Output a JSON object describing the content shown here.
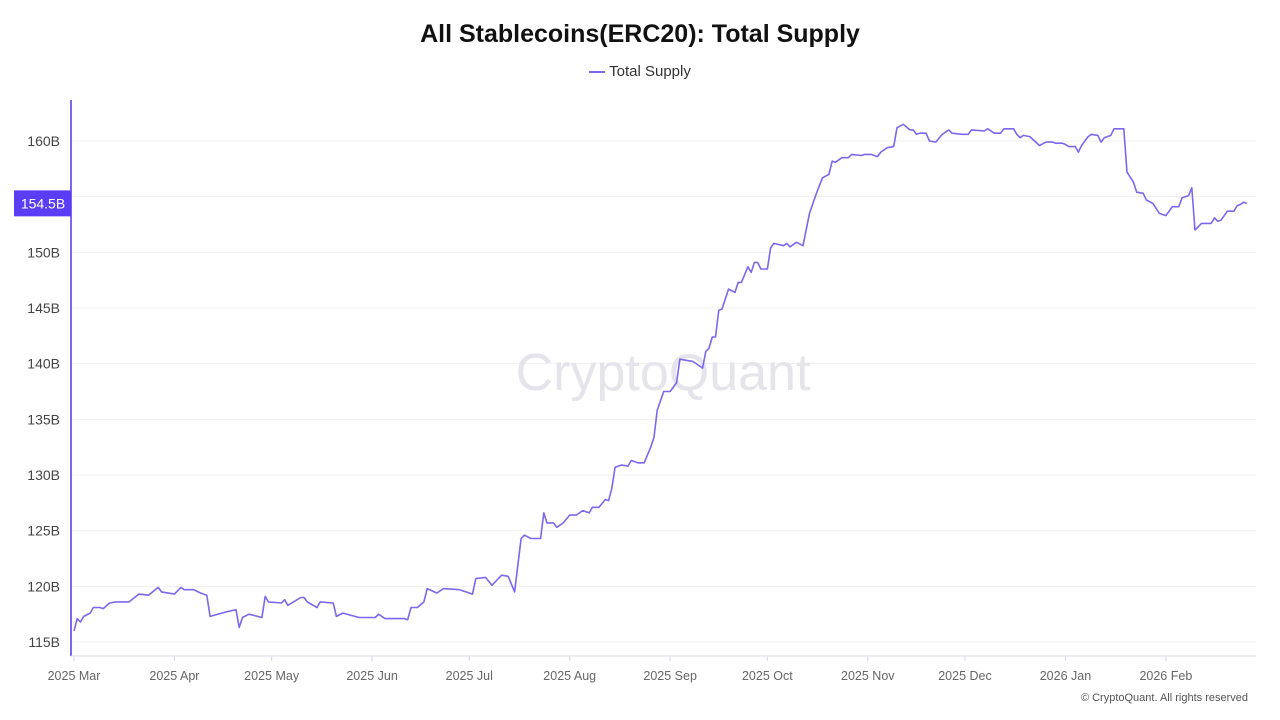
{
  "chart_data": {
    "type": "line",
    "title": "All Stablecoins(ERC20): Total Supply",
    "legend": {
      "position": "top-center",
      "entries": [
        "Total Supply"
      ]
    },
    "xlabel": "",
    "ylabel": "",
    "x_tick_labels": [
      "2025 Mar",
      "2025 Apr",
      "2025 May",
      "2025 Jun",
      "2025 Jul",
      "2025 Aug",
      "2025 Sep",
      "2025 Oct",
      "2025 Nov",
      "2025 Dec",
      "2026 Jan",
      "2026 Feb"
    ],
    "x_tick_dates": [
      "2025-03-01",
      "2025-04-01",
      "2025-05-01",
      "2025-06-01",
      "2025-07-01",
      "2025-08-01",
      "2025-09-01",
      "2025-10-01",
      "2025-11-01",
      "2025-12-01",
      "2026-01-01",
      "2026-02-01"
    ],
    "y_ticks": [
      115,
      120,
      125,
      130,
      135,
      140,
      145,
      150,
      155,
      160
    ],
    "y_tick_labels": [
      "115B",
      "120B",
      "125B",
      "130B",
      "135B",
      "140B",
      "145B",
      "150B",
      "155B",
      "160B"
    ],
    "y_unit": "B",
    "ylim": [
      114,
      163.5
    ],
    "xlim": [
      "2025-03-01",
      "2026-02-28"
    ],
    "grid": "horizontal",
    "current_value_label": "154.5B",
    "colors": {
      "line": "#7b68ee",
      "highlight": "#5b3df5",
      "grid": "#f0f0f0",
      "axis": "#7b68ee"
    },
    "series": [
      {
        "name": "Total Supply",
        "points": [
          [
            "2025-03-01",
            116.0
          ],
          [
            "2025-03-02",
            117.1
          ],
          [
            "2025-03-03",
            116.8
          ],
          [
            "2025-03-04",
            117.3
          ],
          [
            "2025-03-06",
            117.6
          ],
          [
            "2025-03-07",
            118.1
          ],
          [
            "2025-03-09",
            118.1
          ],
          [
            "2025-03-10",
            118.0
          ],
          [
            "2025-03-12",
            118.5
          ],
          [
            "2025-03-14",
            118.6
          ],
          [
            "2025-03-18",
            118.6
          ],
          [
            "2025-03-21",
            119.3
          ],
          [
            "2025-03-24",
            119.2
          ],
          [
            "2025-03-27",
            119.9
          ],
          [
            "2025-03-28",
            119.5
          ],
          [
            "2025-04-01",
            119.3
          ],
          [
            "2025-04-03",
            119.9
          ],
          [
            "2025-04-04",
            119.7
          ],
          [
            "2025-04-07",
            119.7
          ],
          [
            "2025-04-09",
            119.4
          ],
          [
            "2025-04-11",
            119.2
          ],
          [
            "2025-04-12",
            117.3
          ],
          [
            "2025-04-17",
            117.7
          ],
          [
            "2025-04-20",
            117.9
          ],
          [
            "2025-04-21",
            116.3
          ],
          [
            "2025-04-22",
            117.2
          ],
          [
            "2025-04-24",
            117.5
          ],
          [
            "2025-04-28",
            117.2
          ],
          [
            "2025-04-29",
            119.1
          ],
          [
            "2025-04-30",
            118.6
          ],
          [
            "2025-05-04",
            118.5
          ],
          [
            "2025-05-05",
            118.8
          ],
          [
            "2025-05-06",
            118.3
          ],
          [
            "2025-05-10",
            119.0
          ],
          [
            "2025-05-11",
            119.0
          ],
          [
            "2025-05-12",
            118.6
          ],
          [
            "2025-05-15",
            118.1
          ],
          [
            "2025-05-16",
            118.6
          ],
          [
            "2025-05-20",
            118.5
          ],
          [
            "2025-05-21",
            117.3
          ],
          [
            "2025-05-23",
            117.6
          ],
          [
            "2025-05-28",
            117.2
          ],
          [
            "2025-06-02",
            117.2
          ],
          [
            "2025-06-03",
            117.5
          ],
          [
            "2025-06-05",
            117.1
          ],
          [
            "2025-06-11",
            117.1
          ],
          [
            "2025-06-12",
            117.0
          ],
          [
            "2025-06-13",
            118.1
          ],
          [
            "2025-06-15",
            118.1
          ],
          [
            "2025-06-17",
            118.6
          ],
          [
            "2025-06-18",
            119.8
          ],
          [
            "2025-06-21",
            119.4
          ],
          [
            "2025-06-23",
            119.8
          ],
          [
            "2025-06-28",
            119.7
          ],
          [
            "2025-06-30",
            119.5
          ],
          [
            "2025-07-02",
            119.3
          ],
          [
            "2025-07-03",
            120.7
          ],
          [
            "2025-07-06",
            120.8
          ],
          [
            "2025-07-08",
            120.1
          ],
          [
            "2025-07-10",
            120.7
          ],
          [
            "2025-07-11",
            121.0
          ],
          [
            "2025-07-13",
            120.9
          ],
          [
            "2025-07-15",
            119.5
          ],
          [
            "2025-07-17",
            124.3
          ],
          [
            "2025-07-18",
            124.6
          ],
          [
            "2025-07-20",
            124.3
          ],
          [
            "2025-07-23",
            124.3
          ],
          [
            "2025-07-24",
            126.6
          ],
          [
            "2025-07-25",
            125.7
          ],
          [
            "2025-07-27",
            125.7
          ],
          [
            "2025-07-28",
            125.3
          ],
          [
            "2025-07-30",
            125.7
          ],
          [
            "2025-08-01",
            126.4
          ],
          [
            "2025-08-03",
            126.4
          ],
          [
            "2025-08-05",
            126.8
          ],
          [
            "2025-08-07",
            126.6
          ],
          [
            "2025-08-08",
            127.1
          ],
          [
            "2025-08-10",
            127.1
          ],
          [
            "2025-08-12",
            127.8
          ],
          [
            "2025-08-13",
            127.7
          ],
          [
            "2025-08-14",
            128.8
          ],
          [
            "2025-08-15",
            130.7
          ],
          [
            "2025-08-17",
            130.9
          ],
          [
            "2025-08-19",
            130.8
          ],
          [
            "2025-08-20",
            131.3
          ],
          [
            "2025-08-22",
            131.1
          ],
          [
            "2025-08-24",
            131.1
          ],
          [
            "2025-08-26",
            132.5
          ],
          [
            "2025-08-27",
            133.4
          ],
          [
            "2025-08-28",
            135.8
          ],
          [
            "2025-08-30",
            137.5
          ],
          [
            "2025-09-01",
            137.5
          ],
          [
            "2025-09-03",
            138.3
          ],
          [
            "2025-09-04",
            140.4
          ],
          [
            "2025-09-08",
            140.2
          ],
          [
            "2025-09-11",
            139.6
          ],
          [
            "2025-09-12",
            141.1
          ],
          [
            "2025-09-13",
            141.4
          ],
          [
            "2025-09-14",
            142.4
          ],
          [
            "2025-09-15",
            142.4
          ],
          [
            "2025-09-16",
            144.8
          ],
          [
            "2025-09-17",
            144.9
          ],
          [
            "2025-09-19",
            146.7
          ],
          [
            "2025-09-21",
            146.4
          ],
          [
            "2025-09-22",
            147.3
          ],
          [
            "2025-09-23",
            147.3
          ],
          [
            "2025-09-25",
            148.7
          ],
          [
            "2025-09-26",
            148.2
          ],
          [
            "2025-09-27",
            149.1
          ],
          [
            "2025-09-28",
            149.1
          ],
          [
            "2025-09-29",
            148.5
          ],
          [
            "2025-10-01",
            148.5
          ],
          [
            "2025-10-02",
            150.4
          ],
          [
            "2025-10-03",
            150.8
          ],
          [
            "2025-10-06",
            150.6
          ],
          [
            "2025-10-07",
            150.8
          ],
          [
            "2025-10-08",
            150.5
          ],
          [
            "2025-10-10",
            150.9
          ],
          [
            "2025-10-12",
            150.6
          ],
          [
            "2025-10-14",
            153.5
          ],
          [
            "2025-10-16",
            155.2
          ],
          [
            "2025-10-18",
            156.7
          ],
          [
            "2025-10-20",
            157.0
          ],
          [
            "2025-10-21",
            158.2
          ],
          [
            "2025-10-22",
            158.1
          ],
          [
            "2025-10-24",
            158.5
          ],
          [
            "2025-10-26",
            158.5
          ],
          [
            "2025-10-27",
            158.8
          ],
          [
            "2025-10-30",
            158.7
          ],
          [
            "2025-10-31",
            158.8
          ],
          [
            "2025-11-02",
            158.8
          ],
          [
            "2025-11-04",
            158.6
          ],
          [
            "2025-11-05",
            159.0
          ],
          [
            "2025-11-07",
            159.4
          ],
          [
            "2025-11-09",
            159.5
          ],
          [
            "2025-11-10",
            161.2
          ],
          [
            "2025-11-12",
            161.5
          ],
          [
            "2025-11-14",
            161.0
          ],
          [
            "2025-11-15",
            161.0
          ],
          [
            "2025-11-16",
            160.6
          ],
          [
            "2025-11-17",
            160.7
          ],
          [
            "2025-11-19",
            160.7
          ],
          [
            "2025-11-20",
            160.0
          ],
          [
            "2025-11-22",
            159.9
          ],
          [
            "2025-11-24",
            160.6
          ],
          [
            "2025-11-26",
            161.0
          ],
          [
            "2025-11-27",
            160.7
          ],
          [
            "2025-11-30",
            160.6
          ],
          [
            "2025-12-02",
            160.6
          ],
          [
            "2025-12-03",
            161.0
          ],
          [
            "2025-12-07",
            160.9
          ],
          [
            "2025-12-08",
            161.1
          ],
          [
            "2025-12-10",
            160.7
          ],
          [
            "2025-12-12",
            160.7
          ],
          [
            "2025-12-13",
            161.1
          ],
          [
            "2025-12-16",
            161.1
          ],
          [
            "2025-12-17",
            160.6
          ],
          [
            "2025-12-18",
            160.3
          ],
          [
            "2025-12-19",
            160.5
          ],
          [
            "2025-12-21",
            160.4
          ],
          [
            "2025-12-24",
            159.6
          ],
          [
            "2025-12-26",
            159.9
          ],
          [
            "2025-12-28",
            159.9
          ],
          [
            "2025-12-29",
            159.8
          ],
          [
            "2025-12-31",
            159.8
          ],
          [
            "2026-01-01",
            159.7
          ],
          [
            "2026-01-02",
            159.5
          ],
          [
            "2026-01-04",
            159.5
          ],
          [
            "2026-01-05",
            159.0
          ],
          [
            "2026-01-06",
            159.6
          ],
          [
            "2026-01-08",
            160.4
          ],
          [
            "2026-01-09",
            160.6
          ],
          [
            "2026-01-11",
            160.5
          ],
          [
            "2026-01-12",
            159.9
          ],
          [
            "2026-01-13",
            160.3
          ],
          [
            "2026-01-15",
            160.5
          ],
          [
            "2026-01-16",
            161.1
          ],
          [
            "2026-01-19",
            161.1
          ],
          [
            "2026-01-20",
            157.2
          ],
          [
            "2026-01-22",
            156.3
          ],
          [
            "2026-01-23",
            155.4
          ],
          [
            "2026-01-25",
            155.3
          ],
          [
            "2026-01-26",
            154.7
          ],
          [
            "2026-01-28",
            154.4
          ],
          [
            "2026-01-30",
            153.5
          ],
          [
            "2026-02-01",
            153.3
          ],
          [
            "2026-02-03",
            154.1
          ],
          [
            "2026-02-05",
            154.1
          ],
          [
            "2026-02-06",
            154.9
          ],
          [
            "2026-02-08",
            155.1
          ],
          [
            "2026-02-09",
            155.8
          ],
          [
            "2026-02-10",
            152.0
          ],
          [
            "2026-02-12",
            152.6
          ],
          [
            "2026-02-15",
            152.6
          ],
          [
            "2026-02-16",
            153.1
          ],
          [
            "2026-02-17",
            152.8
          ],
          [
            "2026-02-18",
            152.9
          ],
          [
            "2026-02-20",
            153.7
          ],
          [
            "2026-02-22",
            153.7
          ],
          [
            "2026-02-23",
            154.2
          ],
          [
            "2026-02-24",
            154.3
          ],
          [
            "2026-02-25",
            154.5
          ],
          [
            "2026-02-26",
            154.4
          ]
        ]
      }
    ]
  },
  "watermark": "CryptoQuant",
  "footer": "© CryptoQuant. All rights reserved"
}
